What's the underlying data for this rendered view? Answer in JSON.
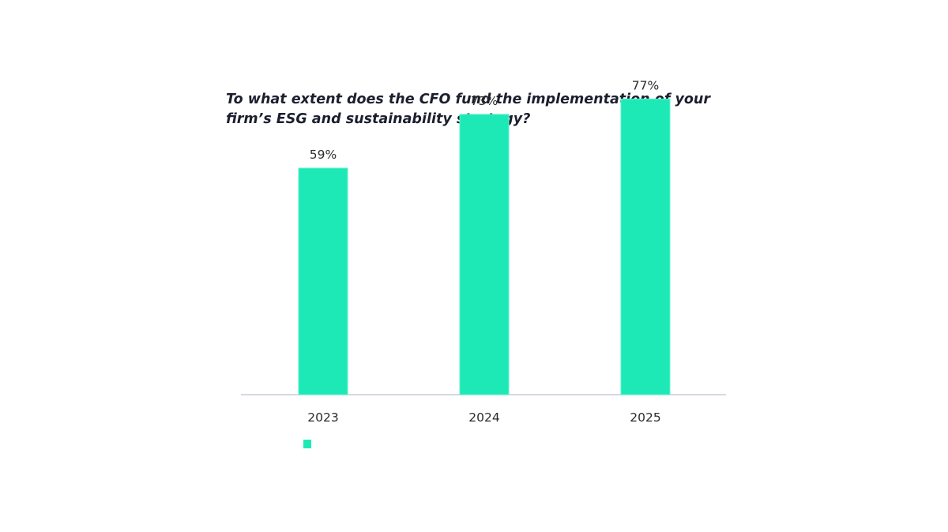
{
  "chart_data": {
    "type": "bar",
    "title": "To what extent does the CFO fund the implementation of your firm’s ESG and sustainability strategy?",
    "categories": [
      "2023",
      "2024",
      "2025"
    ],
    "values": [
      59,
      73,
      77
    ],
    "value_labels": [
      "59%",
      "73%",
      "77%"
    ],
    "xlabel": "",
    "ylabel": "",
    "ylim": [
      0,
      100
    ],
    "grid": false,
    "legend": "bottom-left",
    "legend_entries": [
      ""
    ],
    "colors": {
      "bar": "#1de9b6",
      "bar_edge": "#5ff2cc",
      "axis": "#c8ccd8",
      "text": "#2b2b2b",
      "title": "#1c1f2e"
    }
  }
}
